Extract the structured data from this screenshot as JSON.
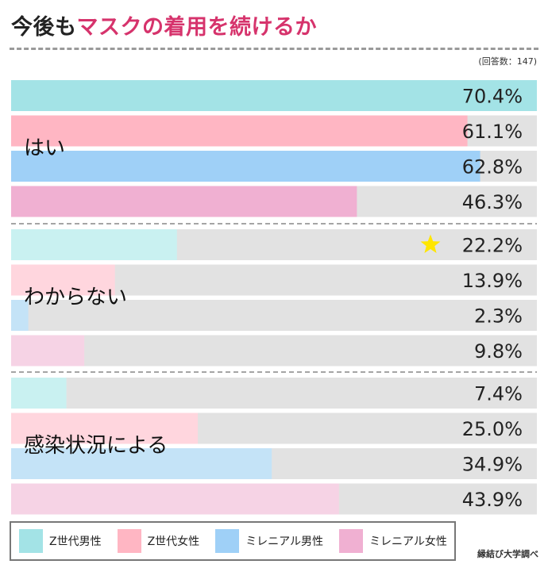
{
  "title_part1": "今後も",
  "title_part2": "マスクの着用を続けるか",
  "sample_note": "(回答数：147)",
  "credit": "縁結び大学調べ",
  "colors": {
    "track": "#e2e2e2",
    "series_strong": [
      "#a3e3e6",
      "#ffb6c3",
      "#9fd0f7",
      "#f0b0d2"
    ],
    "series_light": [
      "#c9f1f1",
      "#ffd6de",
      "#c4e3f7",
      "#f6d3e5"
    ],
    "star": "#ffe600"
  },
  "chart_data": {
    "type": "bar",
    "orientation": "horizontal",
    "title": "今後もマスクの着用を続けるか",
    "categories": [
      "はい",
      "わからない",
      "感染状況による"
    ],
    "series": [
      {
        "name": "Z世代男性",
        "values": [
          70.4,
          22.2,
          7.4
        ]
      },
      {
        "name": "Z世代女性",
        "values": [
          61.1,
          13.9,
          25.0
        ]
      },
      {
        "name": "ミレニアル男性",
        "values": [
          62.8,
          2.3,
          34.9
        ]
      },
      {
        "name": "ミレニアル女性",
        "values": [
          46.3,
          9.8,
          43.9
        ]
      }
    ],
    "value_labels": [
      [
        "70.4%",
        "61.1%",
        "62.8%",
        "46.3%"
      ],
      [
        "22.2%",
        "13.9%",
        "2.3%",
        "9.8%"
      ],
      [
        "7.4%",
        "25.0%",
        "34.9%",
        "43.9%"
      ]
    ],
    "highlight": {
      "category_index": 1,
      "series_index": 0,
      "marker": "star"
    },
    "xlim": [
      0,
      70.4
    ],
    "xlabel": "",
    "ylabel": "",
    "legend_position": "bottom"
  },
  "legend": [
    {
      "label": "Z世代男性"
    },
    {
      "label": "Z世代女性"
    },
    {
      "label": "ミレニアル男性"
    },
    {
      "label": "ミレニアル女性"
    }
  ]
}
